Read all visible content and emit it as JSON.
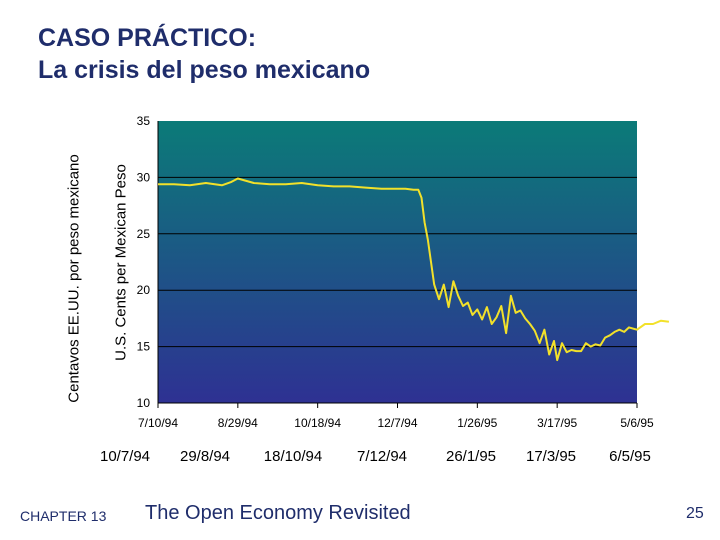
{
  "slide": {
    "title_line1": "CASO PRÁCTICO:",
    "title_line2": "La crisis del peso mexicano",
    "ylabel_es": "Centavos EE.UU. por peso mexicano",
    "chapter": "CHAPTER 13",
    "book_title": "The Open Economy Revisited",
    "page_number": "25",
    "spanish_dates": [
      "10/7/94",
      "29/8/94",
      "18/10/94",
      "7/12/94",
      "26/1/95",
      "17/3/95",
      "6/5/95"
    ]
  },
  "colors": {
    "title": "#1f2d6b",
    "plot_top": "#0b7b78",
    "plot_bottom": "#2e3193",
    "line": "#f2e12a"
  },
  "chart_data": {
    "type": "line",
    "ylabel": "U.S. Cents per Mexican Peso",
    "xlabel": "",
    "ylim": [
      10,
      35
    ],
    "yticks": [
      "10",
      "15",
      "20",
      "25",
      "30",
      "35"
    ],
    "xticks": [
      "7/10/94",
      "8/29/94",
      "10/18/94",
      "12/7/94",
      "1/26/95",
      "3/17/95",
      "5/6/95"
    ],
    "grid": "horizontal",
    "legend": "none",
    "series": [
      {
        "x": [
          "7/10/94",
          "7/20/94",
          "7/30/94",
          "8/9/94",
          "8/19/94",
          "8/25/94",
          "8/29/94",
          "9/8/94",
          "9/18/94",
          "9/28/94",
          "10/8/94",
          "10/18/94",
          "10/28/94",
          "11/7/94",
          "11/17/94",
          "11/27/94",
          "12/7/94",
          "12/12/94",
          "12/17/94",
          "12/20/94",
          "12/22/94",
          "12/24/94",
          "12/26/94",
          "12/28/94",
          "12/30/94",
          "1/2/95",
          "1/5/95",
          "1/8/95",
          "1/11/95",
          "1/14/95",
          "1/17/95",
          "1/20/95",
          "1/23/95",
          "1/26/95",
          "1/29/95",
          "2/1/95",
          "2/4/95",
          "2/7/95",
          "2/10/95",
          "2/13/95",
          "2/16/95",
          "2/19/95",
          "2/22/95",
          "2/25/95",
          "2/28/95",
          "3/3/95",
          "3/6/95",
          "3/9/95",
          "3/12/95",
          "3/15/95",
          "3/17/95",
          "3/20/95",
          "3/23/95",
          "3/26/95",
          "3/29/95",
          "4/1/95",
          "4/4/95",
          "4/7/95",
          "4/10/95",
          "4/13/95",
          "4/16/95",
          "4/19/95",
          "4/22/95",
          "4/25/95",
          "4/28/95",
          "5/1/95",
          "5/6/95",
          "5/11/95",
          "5/16/95",
          "5/21/95",
          "5/26/95"
        ],
        "values": [
          29.4,
          29.4,
          29.3,
          29.5,
          29.3,
          29.6,
          29.9,
          29.5,
          29.4,
          29.4,
          29.5,
          29.3,
          29.2,
          29.2,
          29.1,
          29.0,
          29.0,
          29.0,
          28.9,
          28.9,
          28.2,
          26.0,
          24.5,
          22.5,
          20.5,
          19.2,
          20.5,
          18.5,
          20.8,
          19.5,
          18.6,
          18.9,
          17.8,
          18.3,
          17.4,
          18.5,
          17.0,
          17.6,
          18.6,
          16.2,
          19.5,
          18.0,
          18.2,
          17.5,
          17.0,
          16.4,
          15.3,
          16.5,
          14.3,
          15.5,
          13.8,
          15.3,
          14.5,
          14.7,
          14.6,
          14.6,
          15.3,
          15.0,
          15.2,
          15.1,
          15.8,
          16.0,
          16.3,
          16.5,
          16.3,
          16.7,
          16.5,
          17.0,
          17.0,
          17.3,
          17.2
        ]
      }
    ]
  }
}
